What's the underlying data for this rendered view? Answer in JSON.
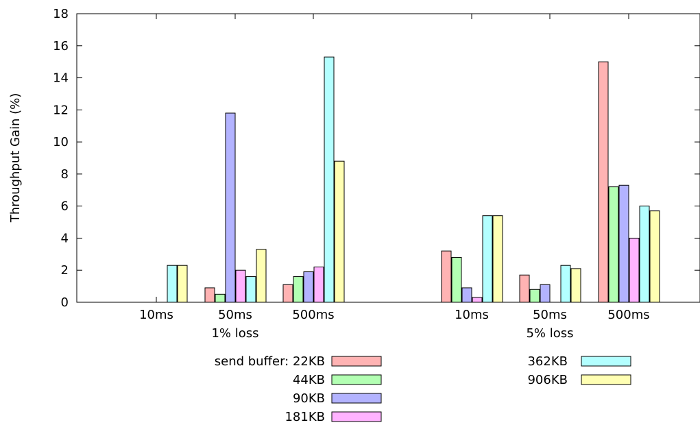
{
  "chart_data": {
    "type": "bar",
    "ylabel": "Throughput Gain (%)",
    "ylim": [
      0,
      18
    ],
    "yticks": [
      0,
      2,
      4,
      6,
      8,
      10,
      12,
      14,
      16,
      18
    ],
    "grid": false,
    "legend_position": "bottom",
    "legend_title": "send buffer:",
    "groups": [
      {
        "label": "1% loss",
        "categories": [
          "10ms",
          "50ms",
          "500ms"
        ]
      },
      {
        "label": "5% loss",
        "categories": [
          "10ms",
          "50ms",
          "500ms"
        ]
      }
    ],
    "series": [
      {
        "name": "22KB",
        "color": "#ffb3b3",
        "values": [
          0,
          0.9,
          1.1,
          3.2,
          1.7,
          15.0
        ]
      },
      {
        "name": "44KB",
        "color": "#b3ffb3",
        "values": [
          0,
          0.5,
          1.6,
          2.8,
          0.8,
          7.2
        ]
      },
      {
        "name": "90KB",
        "color": "#b3b3ff",
        "values": [
          0,
          11.8,
          1.9,
          0.9,
          1.1,
          7.3
        ]
      },
      {
        "name": "181KB",
        "color": "#ffb3ff",
        "values": [
          0,
          2.0,
          2.2,
          0.3,
          0,
          4.0
        ]
      },
      {
        "name": "362KB",
        "color": "#b3ffff",
        "values": [
          2.3,
          1.6,
          15.3,
          5.4,
          2.3,
          6.0
        ]
      },
      {
        "name": "906KB",
        "color": "#ffffb3",
        "values": [
          2.3,
          3.3,
          8.8,
          5.4,
          2.1,
          5.7
        ]
      }
    ]
  }
}
